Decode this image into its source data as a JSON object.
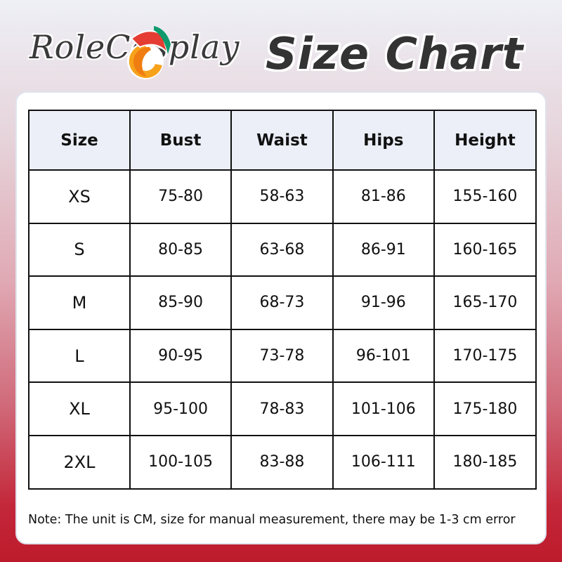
{
  "logo": {
    "text": "RoleCosplay"
  },
  "title": "Size Chart",
  "colors": {
    "header_bg": "#eceff8",
    "background_bottom": "#bd1b2b",
    "logo_orange": "#f7a21b",
    "logo_red": "#e53d33",
    "logo_green": "#0e9a6c"
  },
  "table": {
    "headers": [
      "Size",
      "Bust",
      "Waist",
      "Hips",
      "Height"
    ],
    "rows": [
      [
        "XS",
        "75-80",
        "58-63",
        "81-86",
        "155-160"
      ],
      [
        "S",
        "80-85",
        "63-68",
        "86-91",
        "160-165"
      ],
      [
        "M",
        "85-90",
        "68-73",
        "91-96",
        "165-170"
      ],
      [
        "L",
        "90-95",
        "73-78",
        "96-101",
        "170-175"
      ],
      [
        "XL",
        "95-100",
        "78-83",
        "101-106",
        "175-180"
      ],
      [
        "2XL",
        "100-105",
        "83-88",
        "106-111",
        "180-185"
      ]
    ]
  },
  "note": "Note: The unit is CM, size for manual measurement, there may be 1-3 cm error"
}
